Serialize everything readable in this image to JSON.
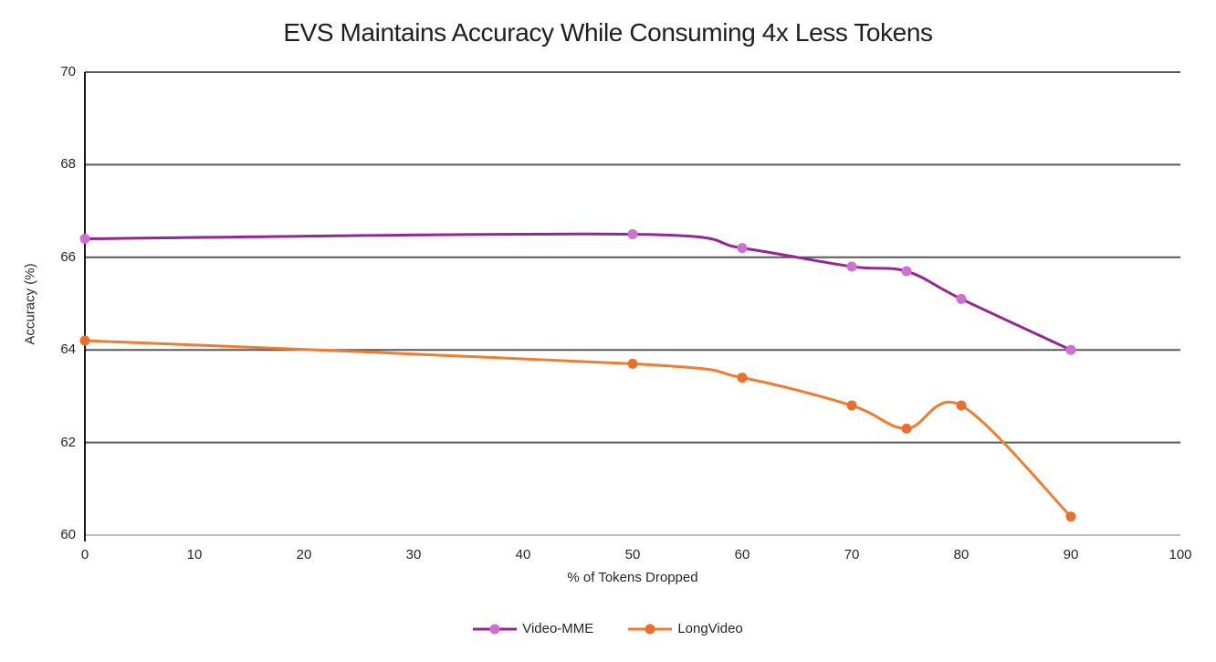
{
  "chart_data": {
    "type": "line",
    "title": "EVS Maintains Accuracy While Consuming 4x Less Tokens",
    "xlabel": "% of Tokens Dropped",
    "ylabel": "Accuracy (%)",
    "xlim": [
      0,
      100
    ],
    "ylim": [
      60,
      70
    ],
    "x_ticks": [
      0,
      10,
      20,
      30,
      40,
      50,
      60,
      70,
      80,
      90,
      100
    ],
    "y_ticks": [
      60,
      62,
      64,
      66,
      68,
      70
    ],
    "grid": "horizontal",
    "smooth": true,
    "legend_position": "bottom",
    "series": [
      {
        "name": "Video-MME",
        "line_color": "#932790",
        "marker_color": "#CE6FD1",
        "x": [
          0,
          50,
          60,
          70,
          75,
          80,
          90
        ],
        "values": [
          66.4,
          66.5,
          66.2,
          65.8,
          65.7,
          65.1,
          64.0
        ]
      },
      {
        "name": "LongVideo",
        "line_color": "#ED7D31",
        "marker_color": "#E8702C",
        "x": [
          0,
          50,
          60,
          70,
          75,
          80,
          90
        ],
        "values": [
          64.2,
          63.7,
          63.4,
          62.8,
          62.3,
          62.8,
          60.4
        ]
      }
    ]
  },
  "colors": {
    "gridline": "#595959",
    "x_axis_line": "#BFBFBF",
    "y_axis_line": "#000000",
    "text": "#262626",
    "background": "#FFFFFF"
  }
}
